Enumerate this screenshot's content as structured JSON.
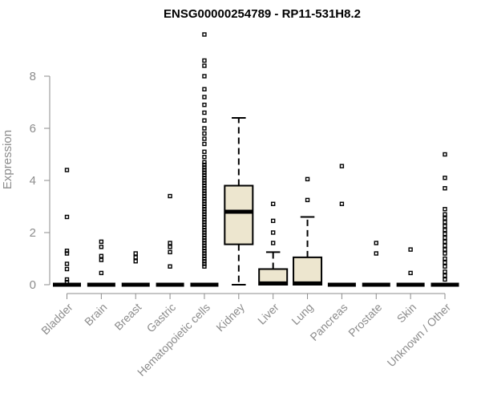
{
  "chart_data": {
    "type": "boxplot",
    "title": "ENSG00000254789 - RP11-531H8.2",
    "ylabel": "Expression",
    "ylim": [
      0,
      9.8
    ],
    "yticks": [
      0,
      2,
      4,
      6,
      8
    ],
    "grid": false,
    "box_fill": "#ede6cf",
    "categories": [
      "Bladder",
      "Brain",
      "Breast",
      "Gastric",
      "Hematopoietic cells",
      "Kidney",
      "Liver",
      "Lung",
      "Pancreas",
      "Prostate",
      "Skin",
      "Unknown / Other"
    ],
    "boxes": [
      {
        "q1": 0,
        "median": 0,
        "q3": 0,
        "whisker_low": 0,
        "whisker_high": 0,
        "outliers": [
          0.1,
          0.2,
          0.6,
          0.8,
          1.2,
          1.3,
          2.6,
          4.4
        ]
      },
      {
        "q1": 0,
        "median": 0,
        "q3": 0,
        "whisker_low": 0,
        "whisker_high": 0,
        "outliers": [
          0.45,
          0.95,
          1.1,
          1.45,
          1.65
        ]
      },
      {
        "q1": 0,
        "median": 0,
        "q3": 0,
        "whisker_low": 0,
        "whisker_high": 0,
        "outliers": [
          0.9,
          1.05,
          1.2
        ]
      },
      {
        "q1": 0,
        "median": 0,
        "q3": 0,
        "whisker_low": 0,
        "whisker_high": 0,
        "outliers": [
          0.7,
          1.25,
          1.45,
          1.6,
          3.4
        ]
      },
      {
        "q1": 0,
        "median": 0,
        "q3": 0,
        "whisker_low": 0,
        "whisker_high": 0,
        "outliers": [
          0.7,
          0.8,
          0.9,
          1.0,
          1.1,
          1.2,
          1.3,
          1.4,
          1.5,
          1.6,
          1.7,
          1.8,
          1.9,
          2.0,
          2.1,
          2.2,
          2.3,
          2.4,
          2.5,
          2.6,
          2.7,
          2.8,
          2.9,
          3.0,
          3.1,
          3.2,
          3.3,
          3.4,
          3.5,
          3.6,
          3.7,
          3.8,
          3.9,
          4.0,
          4.1,
          4.2,
          4.3,
          4.4,
          4.5,
          4.6,
          4.7,
          4.9,
          5.1,
          5.4,
          5.6,
          5.8,
          6.0,
          6.3,
          6.6,
          6.9,
          7.2,
          7.5,
          8.0,
          8.4,
          8.6,
          9.6
        ]
      },
      {
        "q1": 1.55,
        "median": 2.8,
        "q3": 3.8,
        "whisker_low": 0,
        "whisker_high": 6.4,
        "outliers": []
      },
      {
        "q1": 0,
        "median": 0.05,
        "q3": 0.6,
        "whisker_low": 0,
        "whisker_high": 1.25,
        "outliers": [
          1.6,
          2.0,
          2.45,
          3.1
        ]
      },
      {
        "q1": 0,
        "median": 0.05,
        "q3": 1.05,
        "whisker_low": 0,
        "whisker_high": 2.6,
        "outliers": [
          3.25,
          4.05
        ]
      },
      {
        "q1": 0,
        "median": 0,
        "q3": 0,
        "whisker_low": 0,
        "whisker_high": 0,
        "outliers": [
          3.1,
          4.55
        ]
      },
      {
        "q1": 0,
        "median": 0,
        "q3": 0,
        "whisker_low": 0,
        "whisker_high": 0,
        "outliers": [
          1.2,
          1.6
        ]
      },
      {
        "q1": 0,
        "median": 0,
        "q3": 0,
        "whisker_low": 0,
        "whisker_high": 0,
        "outliers": [
          0.45,
          1.35
        ]
      },
      {
        "q1": 0,
        "median": 0,
        "q3": 0,
        "whisker_low": 0,
        "whisker_high": 0,
        "outliers": [
          0.2,
          0.35,
          0.5,
          0.7,
          0.85,
          1.0,
          1.2,
          1.35,
          1.5,
          1.65,
          1.8,
          1.95,
          2.1,
          2.25,
          2.4,
          2.55,
          2.7,
          2.9,
          3.7,
          4.1,
          5.0
        ]
      }
    ]
  }
}
